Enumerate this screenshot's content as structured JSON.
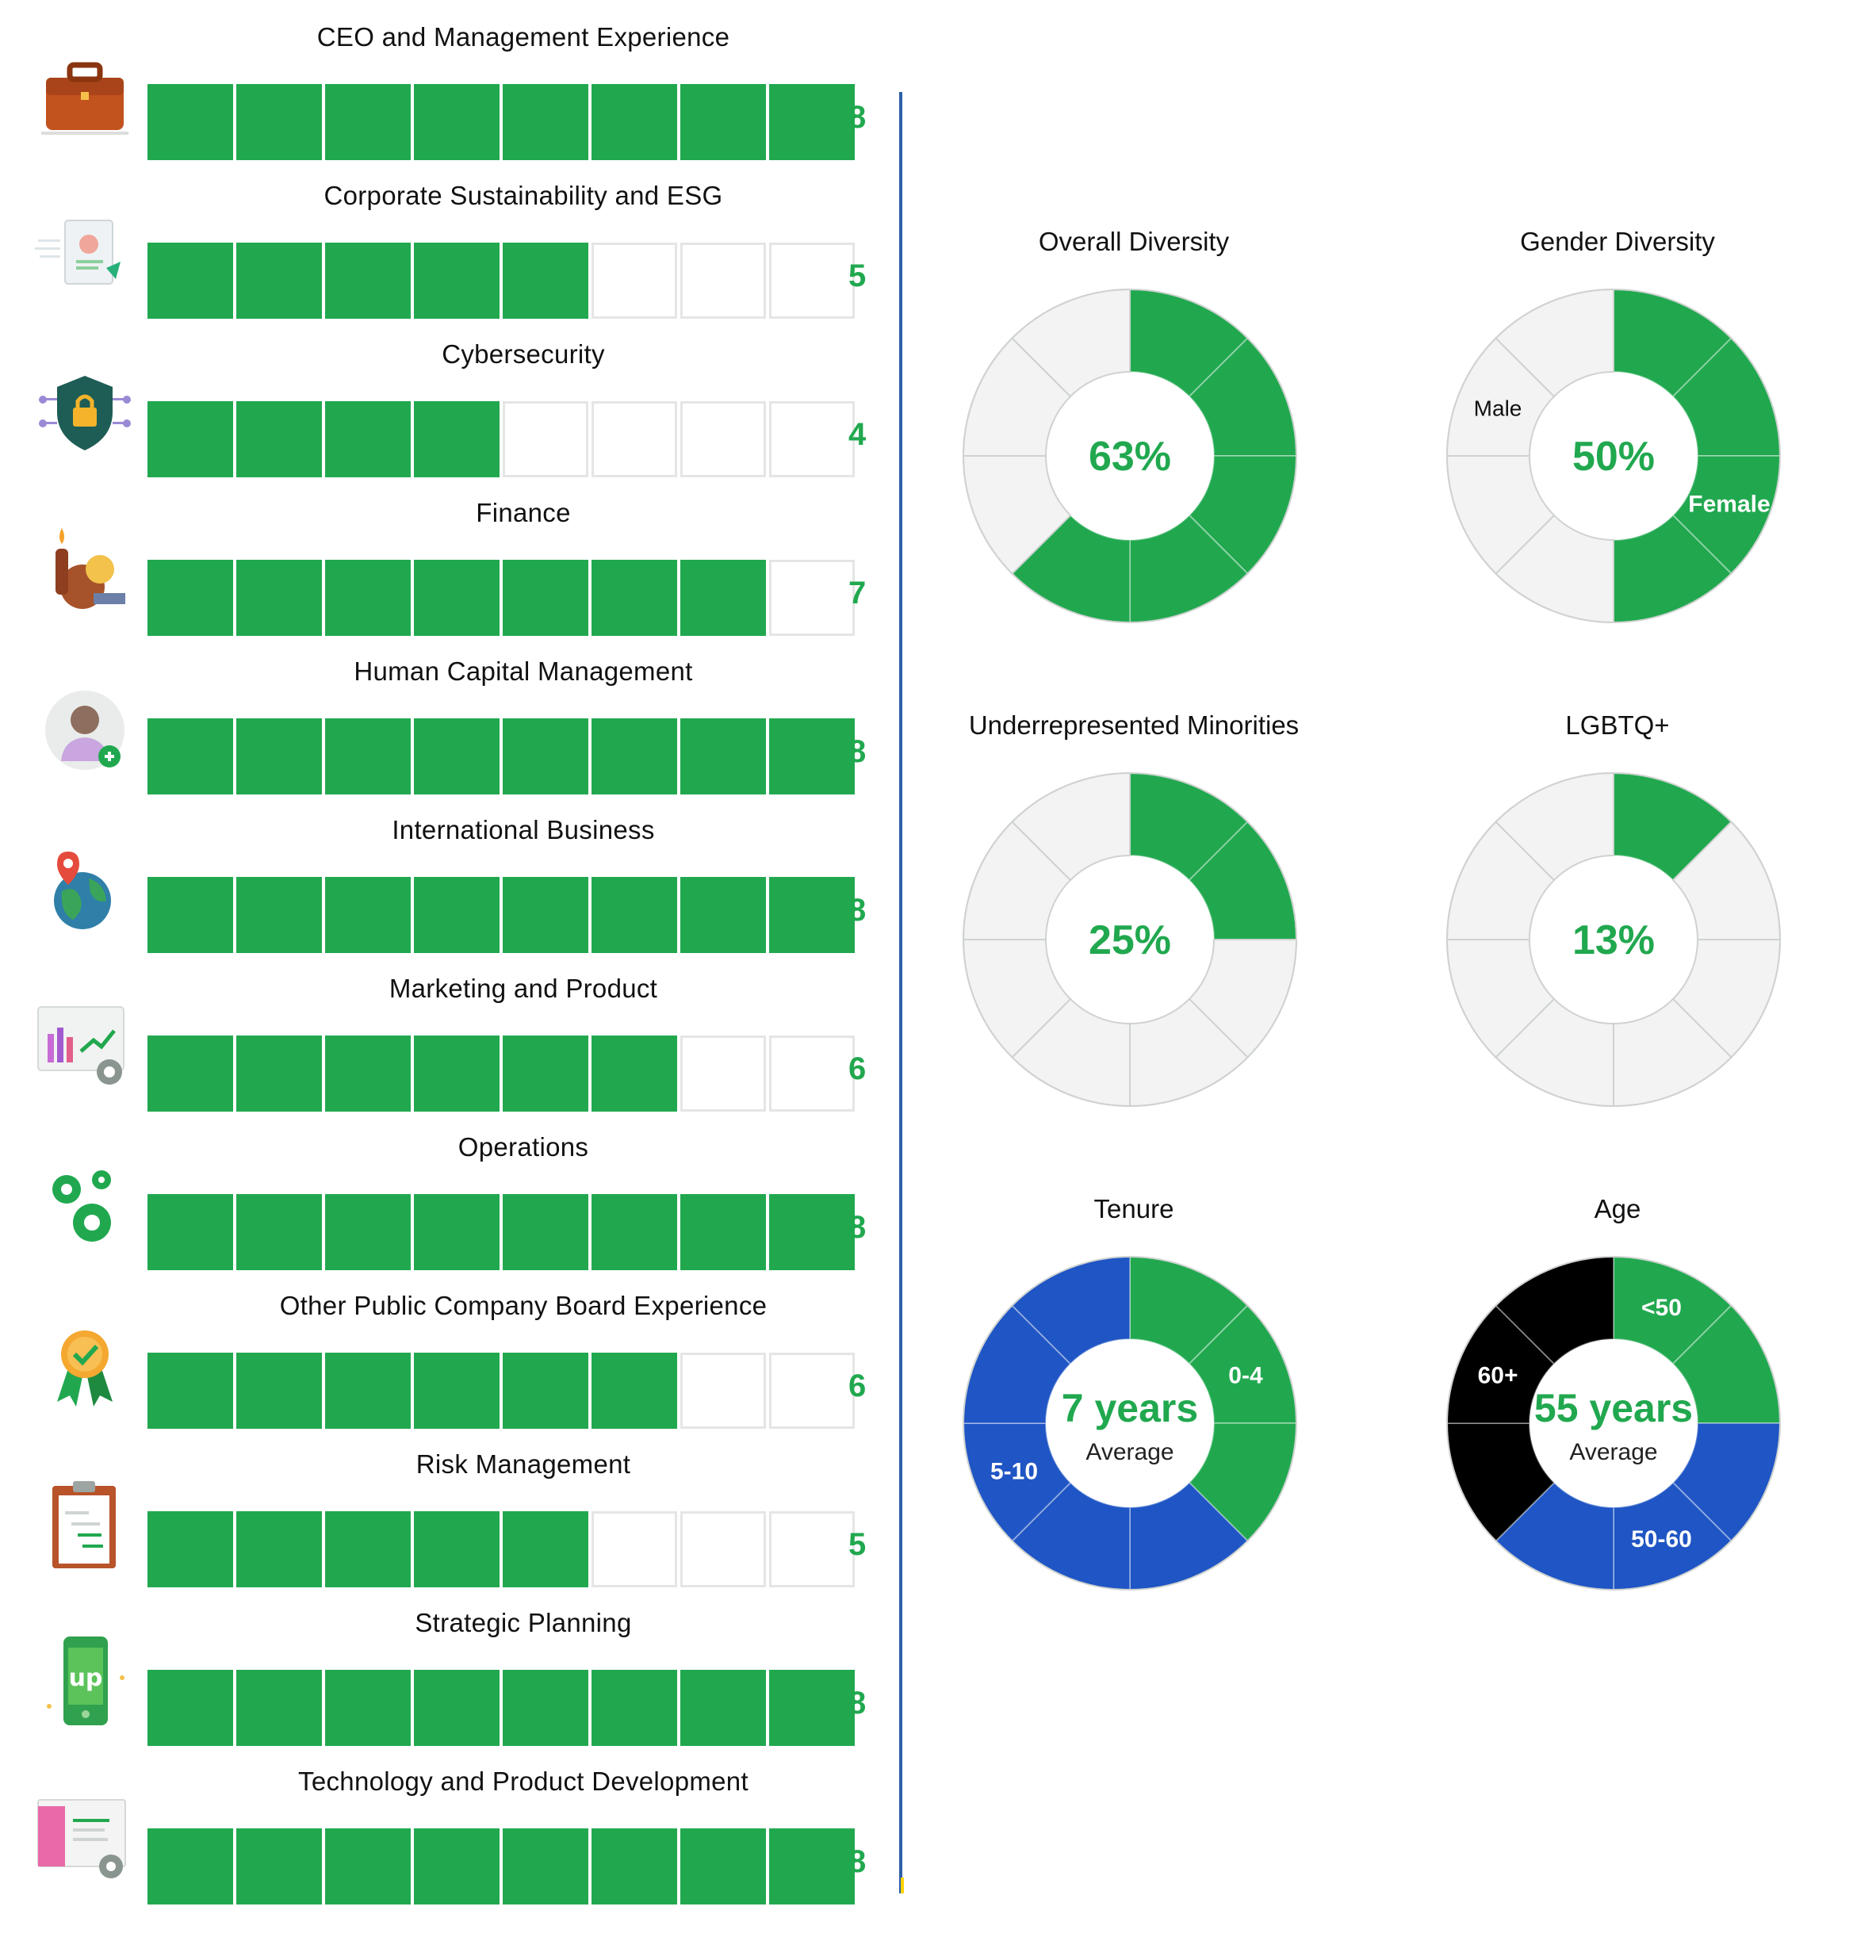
{
  "skills": [
    {
      "label": "CEO and Management Experience",
      "value": 8,
      "icon": "briefcase-icon"
    },
    {
      "label": "Corporate Sustainability and ESG",
      "value": 5,
      "icon": "document-icon"
    },
    {
      "label": "Cybersecurity",
      "value": 4,
      "icon": "shield-lock-icon"
    },
    {
      "label": "Finance",
      "value": 7,
      "icon": "money-bag-icon"
    },
    {
      "label": "Human Capital Management",
      "value": 8,
      "icon": "add-user-icon"
    },
    {
      "label": "International Business",
      "value": 8,
      "icon": "globe-pin-icon"
    },
    {
      "label": "Marketing and Product",
      "value": 6,
      "icon": "chart-gear-icon"
    },
    {
      "label": "Operations",
      "value": 8,
      "icon": "gears-icon"
    },
    {
      "label": "Other Public Company Board Experience",
      "value": 6,
      "icon": "award-ribbon-icon"
    },
    {
      "label": "Risk Management",
      "value": 5,
      "icon": "clipboard-icon"
    },
    {
      "label": "Strategic Planning",
      "value": 8,
      "icon": "phone-upwork-icon"
    },
    {
      "label": "Technology and Product Development",
      "value": 8,
      "icon": "browser-gear-icon"
    }
  ],
  "chart_data": [
    {
      "type": "bar",
      "title": "",
      "categories": [
        "CEO and Management Experience",
        "Corporate Sustainability and ESG",
        "Cybersecurity",
        "Finance",
        "Human Capital Management",
        "International Business",
        "Marketing and Product",
        "Operations",
        "Other Public Company Board Experience",
        "Risk Management",
        "Strategic Planning",
        "Technology and Product Development"
      ],
      "values": [
        8,
        5,
        4,
        7,
        8,
        8,
        6,
        8,
        6,
        5,
        8,
        8
      ],
      "max": 8
    },
    {
      "type": "pie",
      "title": "Overall Diversity",
      "center_text": "63%",
      "filled_segments": 5,
      "total_segments": 8,
      "segment_colors": [
        "#21a84f",
        "#21a84f",
        "#21a84f",
        "#21a84f",
        "#21a84f",
        "#f2f3f2",
        "#f2f3f2",
        "#f2f3f2"
      ],
      "labels": []
    },
    {
      "type": "pie",
      "title": "Gender Diversity",
      "center_text": "50%",
      "filled_segments": 4,
      "total_segments": 8,
      "segment_colors": [
        "#21a84f",
        "#21a84f",
        "#21a84f",
        "#21a84f",
        "#f2f3f2",
        "#f2f3f2",
        "#f2f3f2",
        "#f2f3f2"
      ],
      "labels": [
        {
          "text": "Female",
          "segment": 2,
          "color": "#ffffff"
        },
        {
          "text": "Male",
          "segment": 6,
          "color": "#111111"
        }
      ]
    },
    {
      "type": "pie",
      "title": "Underrepresented Minorities",
      "center_text": "25%",
      "filled_segments": 2,
      "total_segments": 8,
      "segment_colors": [
        "#21a84f",
        "#21a84f",
        "#f2f3f2",
        "#f2f3f2",
        "#f2f3f2",
        "#f2f3f2",
        "#f2f3f2",
        "#f2f3f2"
      ],
      "labels": []
    },
    {
      "type": "pie",
      "title": "LGBTQ+",
      "center_text": "13%",
      "filled_segments": 1,
      "total_segments": 8,
      "segment_colors": [
        "#21a84f",
        "#f2f3f2",
        "#f2f3f2",
        "#f2f3f2",
        "#f2f3f2",
        "#f2f3f2",
        "#f2f3f2",
        "#f2f3f2"
      ],
      "labels": []
    },
    {
      "type": "pie",
      "title": "Tenure",
      "center_text": "7 years",
      "center_subtext": "Average",
      "segments": [
        {
          "name": "0-4",
          "count": 3,
          "color": "#21a84f"
        },
        {
          "name": "5-10",
          "count": 5,
          "color": "#1f55c4"
        }
      ],
      "segment_colors": [
        "#21a84f",
        "#21a84f",
        "#21a84f",
        "#1f55c4",
        "#1f55c4",
        "#1f55c4",
        "#1f55c4",
        "#1f55c4"
      ],
      "labels": [
        {
          "text": "0-4",
          "segment": 1,
          "color": "#ffffff"
        },
        {
          "text": "5-10",
          "segment": 5,
          "color": "#ffffff"
        }
      ]
    },
    {
      "type": "pie",
      "title": "Age",
      "center_text": "55 years",
      "center_subtext": "Average",
      "segments": [
        {
          "name": "<50",
          "count": 2,
          "color": "#21a84f"
        },
        {
          "name": "50-60",
          "count": 3,
          "color": "#1f55c4"
        },
        {
          "name": "60+",
          "count": 3,
          "color": "#000000"
        }
      ],
      "segment_colors": [
        "#21a84f",
        "#21a84f",
        "#1f55c4",
        "#1f55c4",
        "#1f55c4",
        "#000000",
        "#000000",
        "#000000"
      ],
      "labels": [
        {
          "text": "<50",
          "segment": 0,
          "color": "#ffffff"
        },
        {
          "text": "50-60",
          "segment": 3,
          "color": "#ffffff"
        },
        {
          "text": "60+",
          "segment": 6,
          "color": "#ffffff"
        }
      ]
    }
  ],
  "colors": {
    "green": "#21a84f",
    "blue": "#1f55c4",
    "black": "#000000",
    "empty_segment": "#f2f3f2",
    "divider": "#2f5fa8"
  }
}
